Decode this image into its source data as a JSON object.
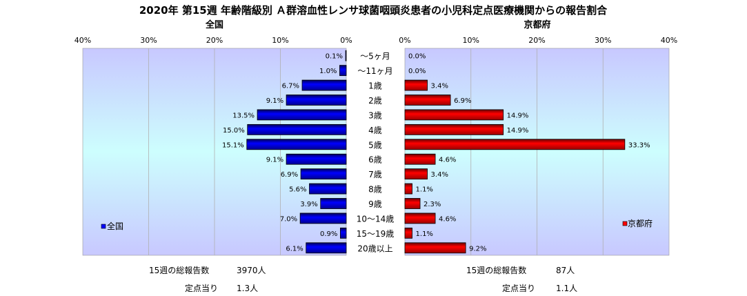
{
  "title": "2020年 第15週 年齢階級別 Ａ群溶血性レンサ球菌咽頭炎患者の小児科定点医療機関からの報告割合",
  "categories": [
    "～5ヶ月",
    "～11ヶ月",
    "1歳",
    "2歳",
    "3歳",
    "4歳",
    "5歳",
    "6歳",
    "7歳",
    "8歳",
    "9歳",
    "10～14歳",
    "15～19歳",
    "20歳以上"
  ],
  "chart_data": [
    {
      "type": "bar",
      "orientation": "horizontal",
      "subtitle": "全国",
      "legend": "全国",
      "legend_position": "left",
      "xlim": [
        0,
        40
      ],
      "x_direction": "reversed",
      "ticks": [
        "40%",
        "30%",
        "20%",
        "10%",
        "0%"
      ],
      "tick_values": [
        40,
        30,
        20,
        10,
        0
      ],
      "color": "#0000ff",
      "values": [
        0.1,
        1.0,
        6.7,
        9.1,
        13.5,
        15.0,
        15.1,
        9.1,
        6.9,
        5.6,
        3.9,
        7.0,
        0.9,
        6.1
      ],
      "labels": [
        "0.1%",
        "1.0%",
        "6.7%",
        "9.1%",
        "13.5%",
        "15.0%",
        "15.1%",
        "9.1%",
        "6.9%",
        "5.6%",
        "3.9%",
        "7.0%",
        "0.9%",
        "6.1%"
      ]
    },
    {
      "type": "bar",
      "orientation": "horizontal",
      "subtitle": "京都府",
      "legend": "京都府",
      "legend_position": "right",
      "xlim": [
        0,
        40
      ],
      "ticks": [
        "0%",
        "10%",
        "20%",
        "30%",
        "40%"
      ],
      "tick_values": [
        0,
        10,
        20,
        30,
        40
      ],
      "color": "#ff0000",
      "values": [
        0.0,
        0.0,
        3.4,
        6.9,
        14.9,
        14.9,
        33.3,
        4.6,
        3.4,
        1.1,
        2.3,
        4.6,
        1.1,
        9.2
      ],
      "labels": [
        "0.0%",
        "0.0%",
        "3.4%",
        "6.9%",
        "14.9%",
        "14.9%",
        "33.3%",
        "4.6%",
        "3.4%",
        "1.1%",
        "2.3%",
        "4.6%",
        "1.1%",
        "9.2%"
      ]
    }
  ],
  "stats": {
    "national": {
      "total_label": "15週の総報告数",
      "total_value": "3970人",
      "per_label": "定点当り",
      "per_value": "1.3人"
    },
    "kyoto": {
      "total_label": "15週の総報告数",
      "total_value": "87人",
      "per_label": "定点当り",
      "per_value": "1.1人"
    }
  }
}
